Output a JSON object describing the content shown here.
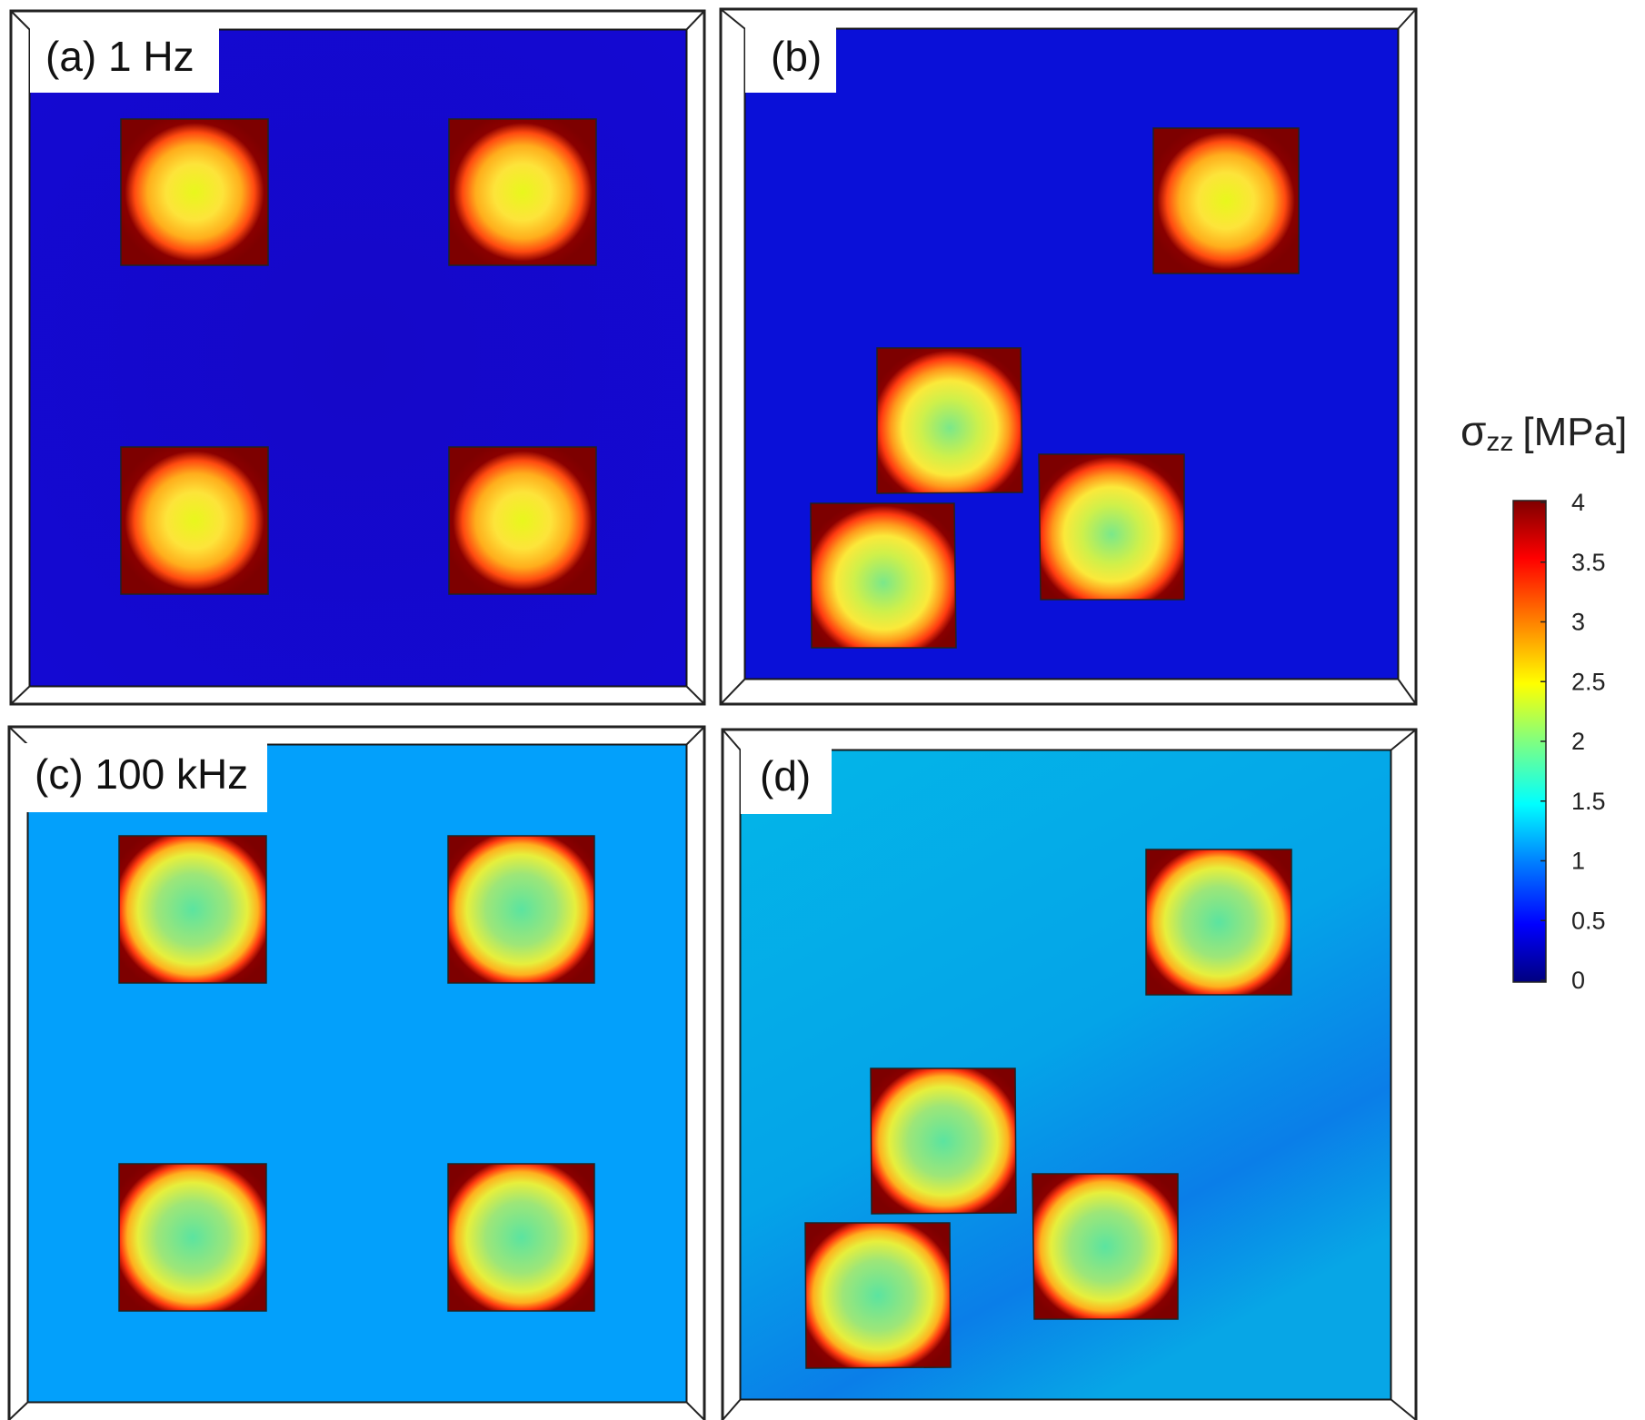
{
  "panels": [
    {
      "id": "a",
      "label": "(a) 1 Hz"
    },
    {
      "id": "b",
      "label": "(b)"
    },
    {
      "id": "c",
      "label": "(c) 100 kHz"
    },
    {
      "id": "d",
      "label": "(d)"
    }
  ],
  "colorbar": {
    "title_symbol": "σ",
    "title_subscript": "zz",
    "title_unit": "[MPa]",
    "min": 0,
    "max": 4,
    "ticks": [
      "4",
      "3.5",
      "3",
      "2.5",
      "2",
      "1.5",
      "1",
      "0.5",
      "0"
    ],
    "colormap": "jet"
  },
  "colors": {
    "panel_a_background": "#1509cc",
    "panel_b_background": "#0a10d8",
    "panel_c_background": "#03a0fb",
    "panel_d_background_top": "#06b4e8",
    "panel_d_background_bottom": "#0a82ea",
    "particle_edge": "#7d0000",
    "particle_center_low_freq": "#e9f51a",
    "particle_center_high_freq": "#4de6a0"
  }
}
